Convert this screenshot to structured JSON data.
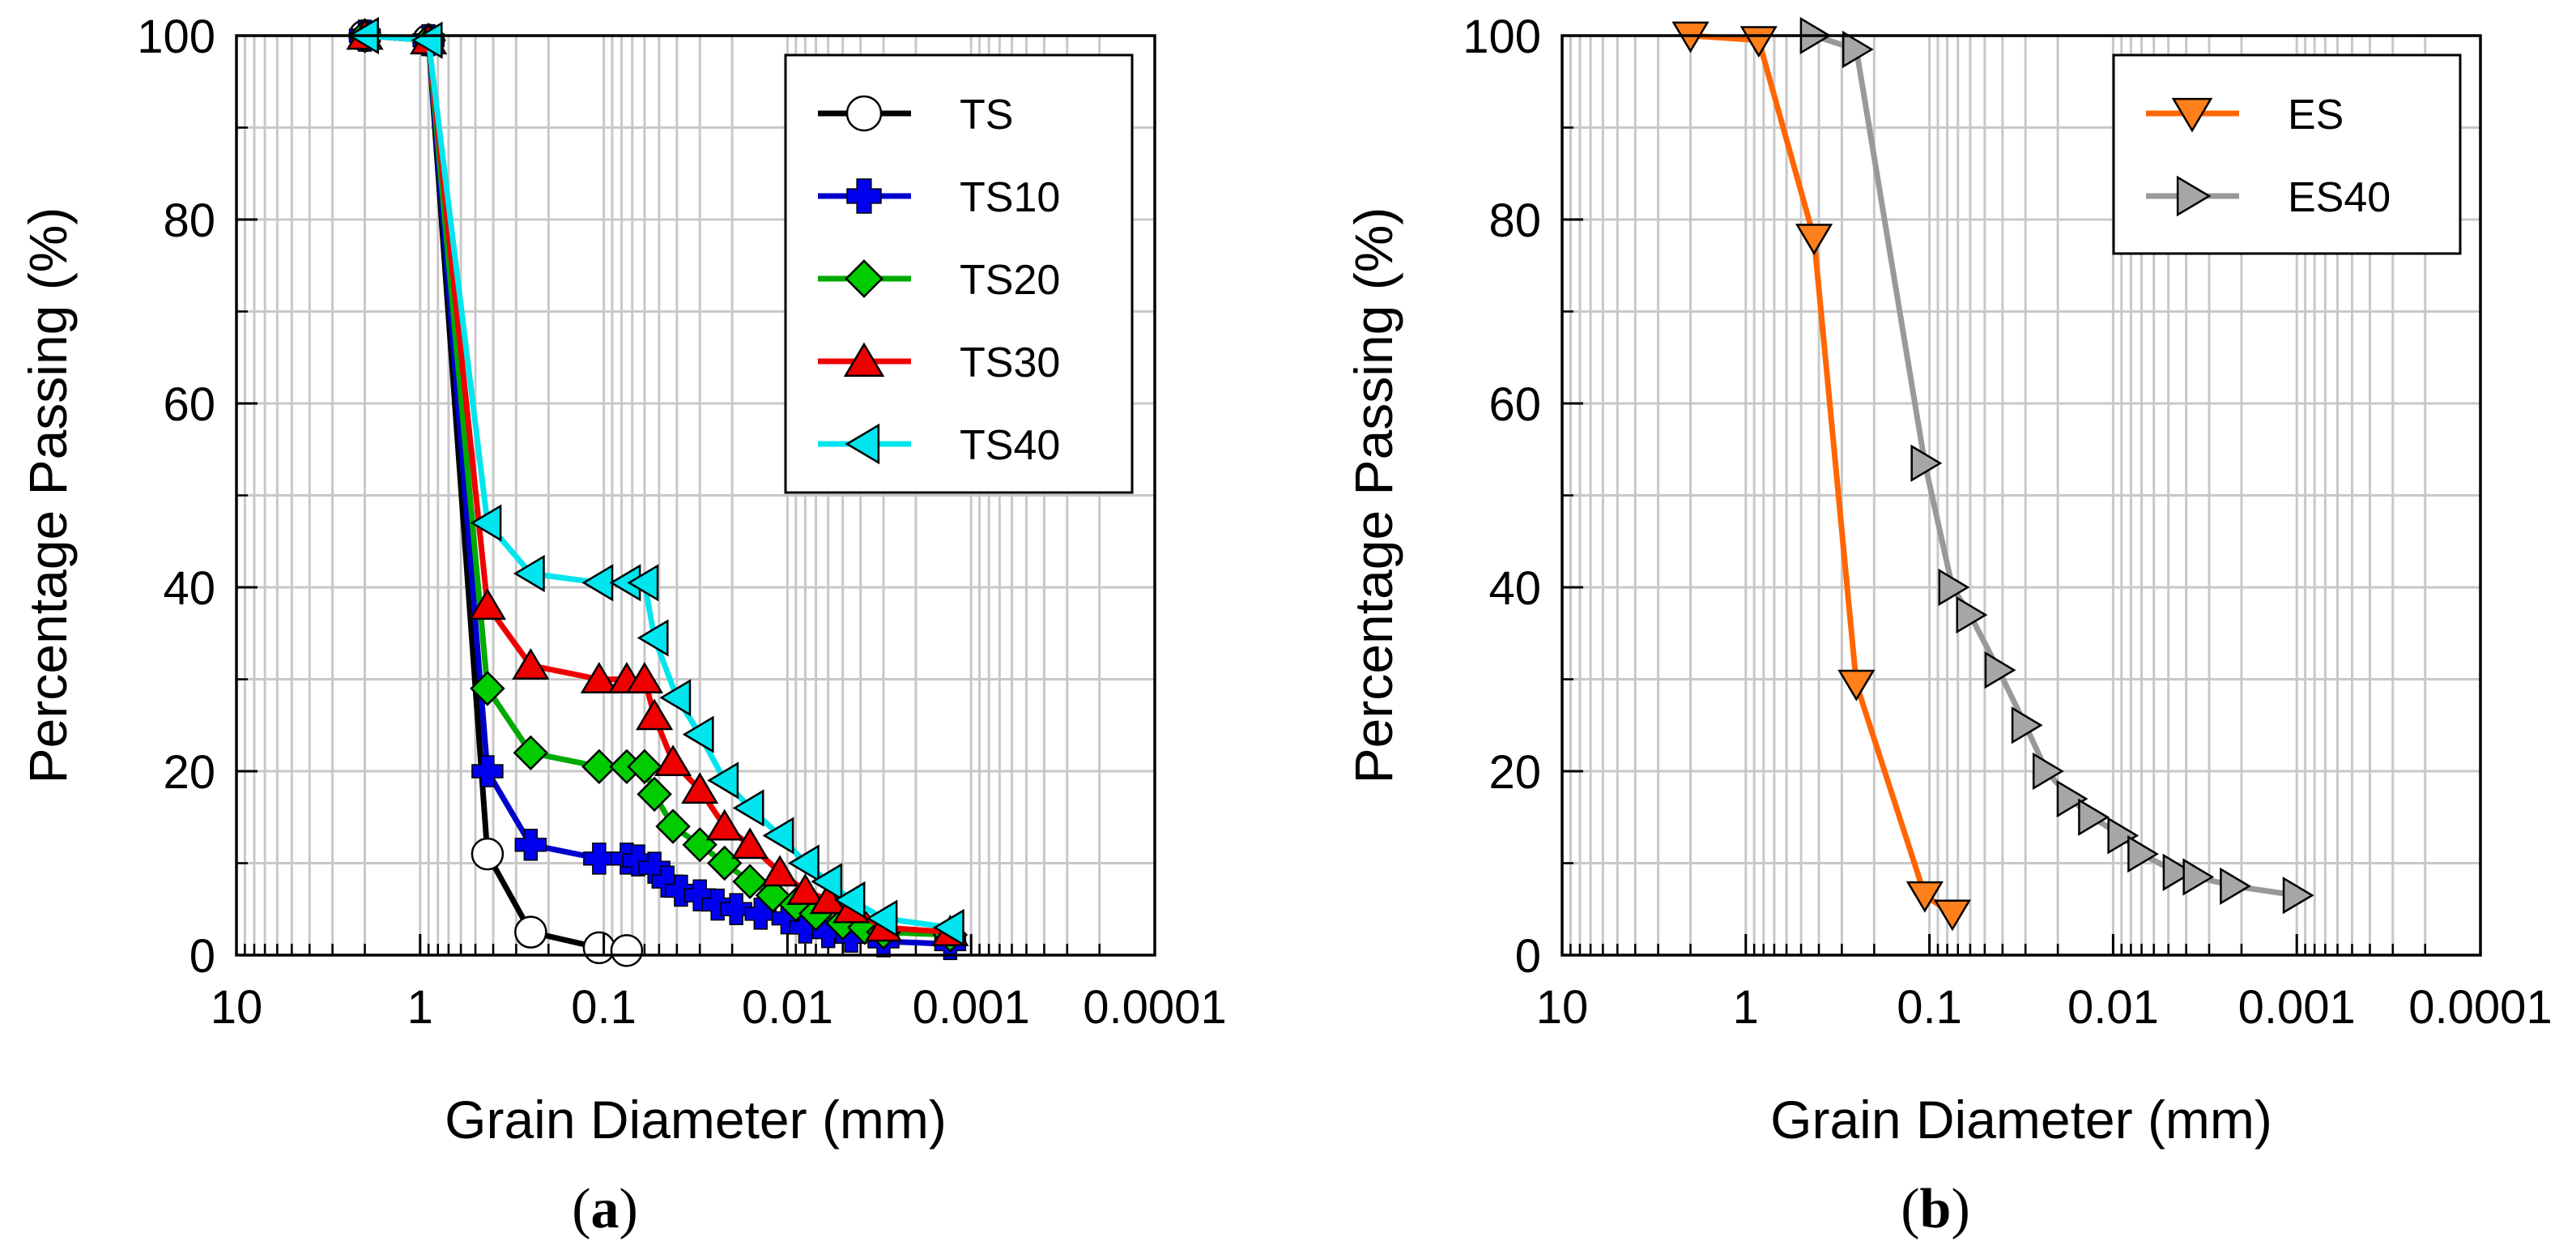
{
  "chart_data": [
    {
      "type": "line",
      "panel_label": "a",
      "xlabel": "Grain Diameter (mm)",
      "ylabel": "Percentage Passing (%)",
      "xscale": "log",
      "xaxis_reversed": true,
      "xlim": [
        10,
        0.0001
      ],
      "ylim": [
        0,
        100
      ],
      "xticks": [
        10,
        1,
        0.1,
        0.01,
        0.001,
        0.0001
      ],
      "xtick_labels": [
        "10",
        "1",
        "0.1",
        "0.01",
        "0.001",
        "0.0001"
      ],
      "yticks": [
        0,
        20,
        40,
        60,
        80,
        100
      ],
      "ytick_labels": [
        "0",
        "20",
        "40",
        "60",
        "80",
        "100"
      ],
      "grid": true,
      "legend_position": "top-right",
      "series": [
        {
          "name": "TS",
          "color": "#000000",
          "marker": "circle",
          "marker_fill": "#ffffff",
          "x": [
            2.0,
            0.9,
            0.43,
            0.25,
            0.106,
            0.075
          ],
          "y": [
            100,
            99.5,
            11,
            2.5,
            0.8,
            0.5
          ]
        },
        {
          "name": "TS10",
          "color": "#0000cc",
          "marker": "plus",
          "marker_fill": "#0000ee",
          "x": [
            2.0,
            0.9,
            0.43,
            0.25,
            0.106,
            0.075,
            0.065,
            0.053,
            0.045,
            0.038,
            0.03,
            0.024,
            0.019,
            0.014,
            0.01,
            0.008,
            0.006,
            0.0045,
            0.003,
            0.0013
          ],
          "y": [
            100,
            99.5,
            20,
            12,
            10.5,
            10.5,
            10.3,
            9.5,
            8,
            7,
            6.5,
            5.5,
            5,
            4.5,
            4,
            3,
            2.5,
            2,
            1.5,
            1.2
          ]
        },
        {
          "name": "TS20",
          "color": "#00aa00",
          "marker": "diamond",
          "marker_fill": "#00cc00",
          "x": [
            2.0,
            0.9,
            0.43,
            0.25,
            0.106,
            0.075,
            0.06,
            0.053,
            0.042,
            0.03,
            0.022,
            0.016,
            0.012,
            0.009,
            0.007,
            0.005,
            0.0038,
            0.003,
            0.0013
          ],
          "y": [
            100,
            99.5,
            29,
            22,
            20.5,
            20.5,
            20.5,
            17.5,
            14,
            12,
            10,
            8,
            6.5,
            5.5,
            4.5,
            3.5,
            3,
            2.5,
            2.2
          ]
        },
        {
          "name": "TS30",
          "color": "#ee0000",
          "marker": "triangle-up",
          "marker_fill": "#ee0000",
          "x": [
            2.0,
            0.9,
            0.43,
            0.25,
            0.106,
            0.075,
            0.06,
            0.053,
            0.042,
            0.03,
            0.022,
            0.016,
            0.011,
            0.008,
            0.006,
            0.0045,
            0.003,
            0.0013
          ],
          "y": [
            100,
            99.5,
            38,
            31.5,
            30,
            30,
            30,
            26,
            21,
            18,
            14,
            12,
            9,
            7,
            6,
            5,
            3,
            2.5
          ]
        },
        {
          "name": "TS40",
          "color": "#00e5ee",
          "marker": "triangle-left",
          "marker_fill": "#00e5ee",
          "x": [
            2.0,
            0.9,
            0.43,
            0.25,
            0.106,
            0.075,
            0.06,
            0.053,
            0.04,
            0.03,
            0.022,
            0.016,
            0.011,
            0.008,
            0.006,
            0.0045,
            0.003,
            0.0013
          ],
          "y": [
            100,
            99.5,
            47,
            41.5,
            40.5,
            40.5,
            40.5,
            34.5,
            28,
            24,
            19,
            16,
            13,
            10,
            8,
            6,
            4,
            3
          ]
        }
      ]
    },
    {
      "type": "line",
      "panel_label": "b",
      "xlabel": "Grain Diameter (mm)",
      "ylabel": "Percentage Passing (%)",
      "xscale": "log",
      "xaxis_reversed": true,
      "xlim": [
        10,
        0.0001
      ],
      "ylim": [
        0,
        100
      ],
      "xticks": [
        10,
        1,
        0.1,
        0.01,
        0.001,
        0.0001
      ],
      "xtick_labels": [
        "10",
        "1",
        "0.1",
        "0.01",
        "0.001",
        "0.0001"
      ],
      "yticks": [
        0,
        20,
        40,
        60,
        80,
        100
      ],
      "ytick_labels": [
        "0",
        "20",
        "40",
        "60",
        "80",
        "100"
      ],
      "grid": true,
      "legend_position": "top-right",
      "series": [
        {
          "name": "ES",
          "color": "#ff6600",
          "marker": "triangle-down",
          "marker_fill": "#ff7f1a",
          "x": [
            2.0,
            0.85,
            0.425,
            0.25,
            0.106,
            0.075
          ],
          "y": [
            100,
            99.5,
            78,
            29.5,
            6.5,
            4.5
          ]
        },
        {
          "name": "ES40",
          "color": "#999999",
          "marker": "triangle-right",
          "marker_fill": "#a6a6a6",
          "x": [
            0.425,
            0.25,
            0.106,
            0.075,
            0.06,
            0.042,
            0.03,
            0.023,
            0.017,
            0.013,
            0.009,
            0.007,
            0.0045,
            0.0035,
            0.0022,
            0.001
          ],
          "y": [
            100,
            98.5,
            53.5,
            40,
            37,
            31,
            25,
            20,
            17,
            15,
            13,
            11,
            9,
            8.5,
            7.5,
            6.5
          ]
        }
      ]
    }
  ]
}
